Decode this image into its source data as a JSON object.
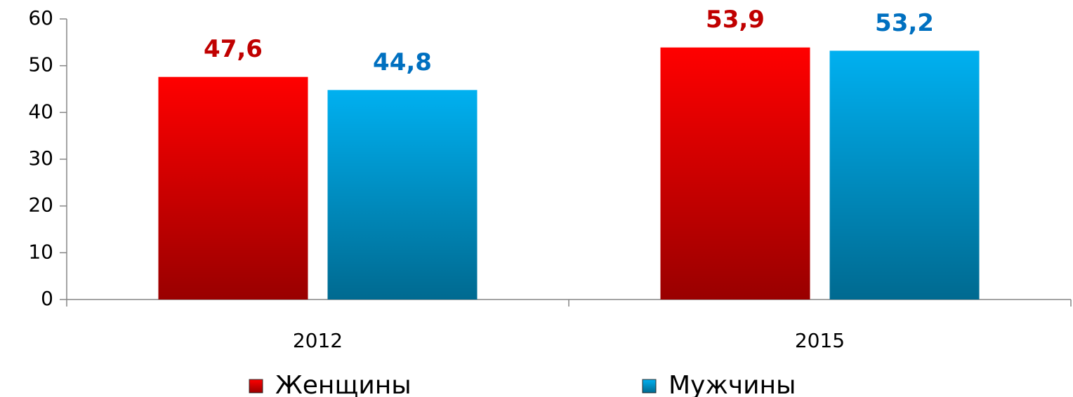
{
  "chart_data": {
    "type": "bar",
    "categories": [
      "2012",
      "2015"
    ],
    "series": [
      {
        "name": "Женщины",
        "color": "#ff0000",
        "label_color": "#c00000",
        "values": [
          47.6,
          53.9
        ],
        "value_labels": [
          "47,6",
          "53,9"
        ]
      },
      {
        "name": "Мужчины",
        "color": "#00b0f0",
        "label_color": "#0070c0",
        "values": [
          44.8,
          53.2
        ],
        "value_labels": [
          "44,8",
          "53,2"
        ]
      }
    ],
    "ylim": [
      0,
      60
    ],
    "yticks": [
      0,
      10,
      20,
      30,
      40,
      50,
      60
    ],
    "grid": false,
    "legend": "bottom"
  }
}
